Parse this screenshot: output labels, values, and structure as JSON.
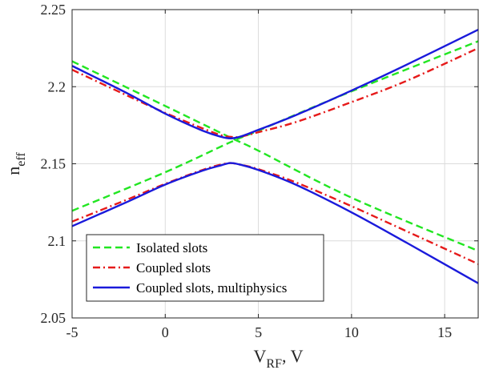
{
  "chart_data": {
    "type": "line",
    "xlabel_main": "V",
    "xlabel_sub": "RF",
    "xlabel_suffix": ", V",
    "ylabel_main": "n",
    "ylabel_sub": "eff",
    "xlim": [
      -5,
      16.8
    ],
    "ylim": [
      2.05,
      2.25
    ],
    "xticks": [
      -5,
      0,
      5,
      10,
      15
    ],
    "xtick_labels": [
      "-5",
      "0",
      "5",
      "10",
      "15"
    ],
    "yticks": [
      2.05,
      2.1,
      2.15,
      2.2,
      2.25
    ],
    "ytick_labels": [
      "2.05",
      "2.1",
      "2.15",
      "2.2",
      "2.25"
    ],
    "grid": true,
    "legend_position": "bottom-left",
    "series": [
      {
        "name": "Isolated slots",
        "color": "#22e622",
        "dash": "dashed",
        "lines": [
          {
            "x": [
              -5,
              0,
              3.5,
              5,
              10,
              16.8
            ],
            "y": [
              2.2165,
              2.1875,
              2.167,
              2.1585,
              2.128,
              2.0935
            ]
          },
          {
            "x": [
              -5,
              0,
              3.5,
              5,
              10,
              16.8
            ],
            "y": [
              2.1195,
              2.1445,
              2.164,
              2.1715,
              2.197,
              2.2295
            ]
          }
        ]
      },
      {
        "name": "Coupled slots",
        "color": "#e61a1a",
        "dash": "dashdot",
        "lines": [
          {
            "x": [
              -5,
              -2,
              0,
              2,
              3,
              3.5,
              4,
              5,
              7,
              10,
              13,
              16.8
            ],
            "y": [
              2.211,
              2.194,
              2.183,
              2.173,
              2.1685,
              2.1675,
              2.1675,
              2.1705,
              2.177,
              2.19,
              2.204,
              2.225
            ]
          },
          {
            "x": [
              -5,
              -2,
              0,
              2,
              3,
              3.5,
              4,
              5,
              7,
              10,
              13,
              16.8
            ],
            "y": [
              2.1125,
              2.127,
              2.137,
              2.146,
              2.1495,
              2.1505,
              2.1495,
              2.1465,
              2.138,
              2.1225,
              2.106,
              2.085
            ]
          }
        ]
      },
      {
        "name": "Coupled slots, multiphysics",
        "color": "#1a1adb",
        "dash": "solid",
        "lines": [
          {
            "x": [
              -5,
              -2,
              0,
              2,
              3,
              3.5,
              4,
              5,
              7,
              10,
              13,
              16.8
            ],
            "y": [
              2.2135,
              2.1955,
              2.1825,
              2.1715,
              2.1675,
              2.1665,
              2.1675,
              2.172,
              2.1815,
              2.1975,
              2.2145,
              2.237
            ]
          },
          {
            "x": [
              -5,
              -2,
              0,
              2,
              3,
              3.5,
              4,
              5,
              7,
              10,
              13,
              16.8
            ],
            "y": [
              2.1095,
              2.1255,
              2.1365,
              2.1455,
              2.149,
              2.1505,
              2.1495,
              2.146,
              2.1365,
              2.1185,
              2.0985,
              2.0725
            ]
          }
        ]
      }
    ]
  }
}
